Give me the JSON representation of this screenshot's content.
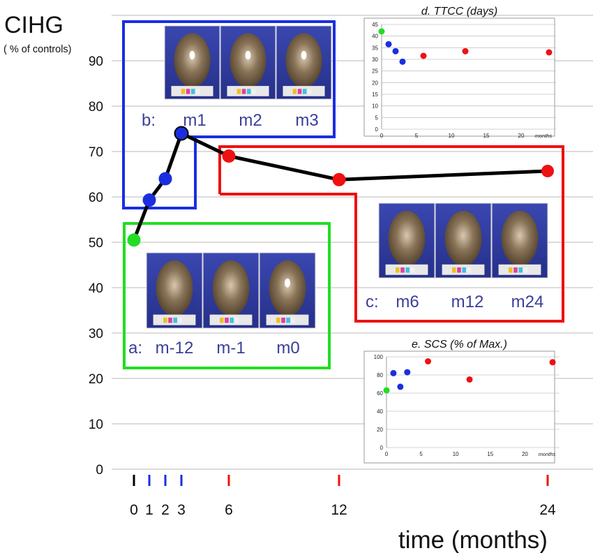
{
  "chart_data": [
    {
      "type": "line",
      "ylabel": "CIHG",
      "ylabel_sub": "( % of controls)",
      "xlabel": "time (months)",
      "ylim": [
        0,
        100
      ],
      "y_ticks": [
        "0",
        "10",
        "20",
        "30",
        "40",
        "50",
        "60",
        "70",
        "80",
        "90"
      ],
      "x_ticks": [
        "0",
        "1",
        "2",
        "3",
        "6",
        "12",
        "24"
      ],
      "grid": true,
      "series": [
        {
          "x": [
            0,
            1,
            2,
            3,
            6,
            12,
            24
          ],
          "y": [
            50.5,
            59.3,
            64,
            74,
            69,
            63.8,
            65.7
          ],
          "colors": [
            "#22dd22",
            "#1a2ee0",
            "#1a2ee0",
            "#1a2ee0",
            "#ee1111",
            "#ee1111",
            "#ee1111"
          ]
        }
      ],
      "tick_colors": [
        "#000000",
        "#1a2ee0",
        "#1a2ee0",
        "#1a2ee0",
        "#ee1111",
        "#ee1111",
        "#ee1111"
      ],
      "groups": [
        {
          "id": "a",
          "color": "#22dd22",
          "tag": "a:",
          "labels": [
            "m-12",
            "m-1",
            "m0"
          ]
        },
        {
          "id": "b",
          "color": "#1a2ee0",
          "tag": "b:",
          "labels": [
            "m1",
            "m2",
            "m3"
          ]
        },
        {
          "id": "c",
          "color": "#ee1111",
          "tag": "c:",
          "labels": [
            "m6",
            "m12",
            "m24"
          ]
        }
      ]
    },
    {
      "type": "scatter",
      "title": "d. TTCC (days)",
      "xunit": "months",
      "xlim": [
        0,
        25
      ],
      "ylim": [
        0,
        45
      ],
      "x_ticks": [
        "0",
        "5",
        "10",
        "15",
        "20"
      ],
      "y_ticks": [
        "0",
        "5",
        "10",
        "15",
        "20",
        "25",
        "30",
        "35",
        "40",
        "45"
      ],
      "points": [
        {
          "x": 0,
          "y": 42,
          "color": "#22dd22"
        },
        {
          "x": 1,
          "y": 36.5,
          "color": "#1a2ee0"
        },
        {
          "x": 2,
          "y": 33.5,
          "color": "#1a2ee0"
        },
        {
          "x": 3,
          "y": 29,
          "color": "#1a2ee0"
        },
        {
          "x": 6,
          "y": 31.5,
          "color": "#ee1111"
        },
        {
          "x": 12,
          "y": 33.5,
          "color": "#ee1111"
        },
        {
          "x": 24,
          "y": 33,
          "color": "#ee1111"
        }
      ]
    },
    {
      "type": "scatter",
      "title": "e. SCS (% of Max.)",
      "xunit": "months",
      "xlim": [
        0,
        25
      ],
      "ylim": [
        0,
        100
      ],
      "x_ticks": [
        "0",
        "5",
        "10",
        "15",
        "20"
      ],
      "y_ticks": [
        "0",
        "20",
        "40",
        "60",
        "80",
        "100"
      ],
      "points": [
        {
          "x": 0,
          "y": 63,
          "color": "#22dd22"
        },
        {
          "x": 1,
          "y": 82,
          "color": "#1a2ee0"
        },
        {
          "x": 2,
          "y": 67,
          "color": "#1a2ee0"
        },
        {
          "x": 3,
          "y": 83,
          "color": "#1a2ee0"
        },
        {
          "x": 6,
          "y": 95,
          "color": "#ee1111"
        },
        {
          "x": 12,
          "y": 75,
          "color": "#ee1111"
        },
        {
          "x": 24,
          "y": 94,
          "color": "#ee1111"
        }
      ]
    }
  ]
}
